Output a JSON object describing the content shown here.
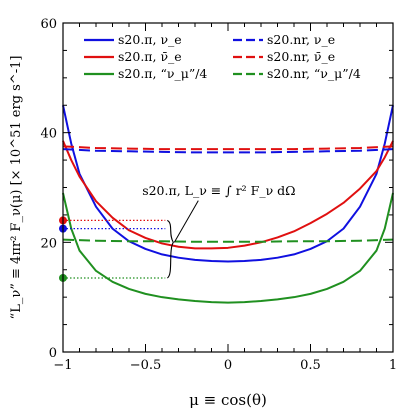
{
  "chart_data": {
    "type": "line",
    "xlabel": "μ ≡ cos(θ)",
    "ylabel": "“L_ν” ≡ 4πr² F_ν(μ)  [× 10^51 erg s^-1]",
    "xlim": [
      -1,
      1
    ],
    "ylim": [
      0,
      60
    ],
    "x_ticks": [
      -1,
      -0.5,
      0,
      0.5,
      1
    ],
    "x_tick_labels": [
      "−1",
      "−0.5",
      "0",
      "0.5",
      "1"
    ],
    "y_ticks": [
      0,
      20,
      40,
      60
    ],
    "y_tick_labels": [
      "0",
      "20",
      "40",
      "60"
    ],
    "grid": false,
    "legend_position": "top",
    "colors": {
      "blue": "#1010e0",
      "red": "#e01010",
      "green": "#209020"
    },
    "series": [
      {
        "name": "s20.π, ν_e",
        "color": "#1010e0",
        "dash": "solid",
        "x": [
          -1.0,
          -0.95,
          -0.9,
          -0.8,
          -0.7,
          -0.6,
          -0.5,
          -0.4,
          -0.3,
          -0.2,
          -0.1,
          0.0,
          0.1,
          0.2,
          0.3,
          0.4,
          0.5,
          0.6,
          0.7,
          0.8,
          0.9,
          0.95,
          1.0
        ],
        "y": [
          45.0,
          38.0,
          32.5,
          26.5,
          22.5,
          20.2,
          18.8,
          17.8,
          17.2,
          16.8,
          16.6,
          16.5,
          16.6,
          16.8,
          17.2,
          17.8,
          18.8,
          20.2,
          22.5,
          26.5,
          32.5,
          38.0,
          45.0
        ]
      },
      {
        "name": "s20.π, ν̄_e",
        "color": "#e01010",
        "dash": "solid",
        "x": [
          -1.0,
          -0.95,
          -0.9,
          -0.8,
          -0.7,
          -0.6,
          -0.5,
          -0.4,
          -0.3,
          -0.2,
          -0.1,
          0.0,
          0.1,
          0.2,
          0.3,
          0.4,
          0.5,
          0.6,
          0.7,
          0.8,
          0.9,
          0.95,
          1.0
        ],
        "y": [
          38.5,
          35.0,
          32.0,
          27.5,
          24.5,
          22.2,
          20.8,
          19.8,
          19.2,
          18.9,
          18.9,
          19.0,
          19.4,
          20.0,
          20.9,
          22.0,
          23.5,
          25.2,
          27.2,
          29.8,
          33.0,
          35.5,
          38.5
        ]
      },
      {
        "name": "s20.π, “ν_μ”/4",
        "color": "#209020",
        "dash": "solid",
        "x": [
          -1.0,
          -0.95,
          -0.9,
          -0.8,
          -0.7,
          -0.6,
          -0.5,
          -0.4,
          -0.3,
          -0.2,
          -0.1,
          0.0,
          0.1,
          0.2,
          0.3,
          0.4,
          0.5,
          0.6,
          0.7,
          0.8,
          0.9,
          0.95,
          1.0
        ],
        "y": [
          29.0,
          22.5,
          18.5,
          14.8,
          12.8,
          11.5,
          10.6,
          10.0,
          9.6,
          9.3,
          9.1,
          9.0,
          9.1,
          9.3,
          9.6,
          10.0,
          10.6,
          11.5,
          12.8,
          14.8,
          18.5,
          22.5,
          29.0
        ]
      },
      {
        "name": "s20.nr, ν_e",
        "color": "#1010e0",
        "dash": "dashed",
        "x": [
          -1.0,
          -0.8,
          -0.6,
          -0.4,
          -0.2,
          0.0,
          0.2,
          0.4,
          0.6,
          0.8,
          1.0
        ],
        "y": [
          37.0,
          36.7,
          36.6,
          36.5,
          36.4,
          36.4,
          36.4,
          36.5,
          36.6,
          36.7,
          37.0
        ]
      },
      {
        "name": "s20.nr, ν̄_e",
        "color": "#e01010",
        "dash": "dashed",
        "x": [
          -1.0,
          -0.8,
          -0.6,
          -0.4,
          -0.2,
          0.0,
          0.2,
          0.4,
          0.6,
          0.8,
          1.0
        ],
        "y": [
          37.5,
          37.2,
          37.1,
          37.0,
          37.0,
          37.0,
          37.0,
          37.0,
          37.1,
          37.2,
          37.5
        ]
      },
      {
        "name": "s20.nr, “ν_μ”/4",
        "color": "#209020",
        "dash": "dashed",
        "x": [
          -1.0,
          -0.8,
          -0.6,
          -0.4,
          -0.2,
          0.0,
          0.2,
          0.4,
          0.6,
          0.8,
          1.0
        ],
        "y": [
          20.5,
          20.3,
          20.2,
          20.2,
          20.1,
          20.1,
          20.1,
          20.2,
          20.2,
          20.3,
          20.5
        ]
      }
    ],
    "integrated_markers": [
      {
        "color": "#e01010",
        "value": 24.0
      },
      {
        "color": "#1010e0",
        "value": 22.5
      },
      {
        "color": "#209020",
        "value": 13.5
      }
    ],
    "annotation": "s20.π, L_ν ≡ ∫ r² F_ν dΩ"
  }
}
